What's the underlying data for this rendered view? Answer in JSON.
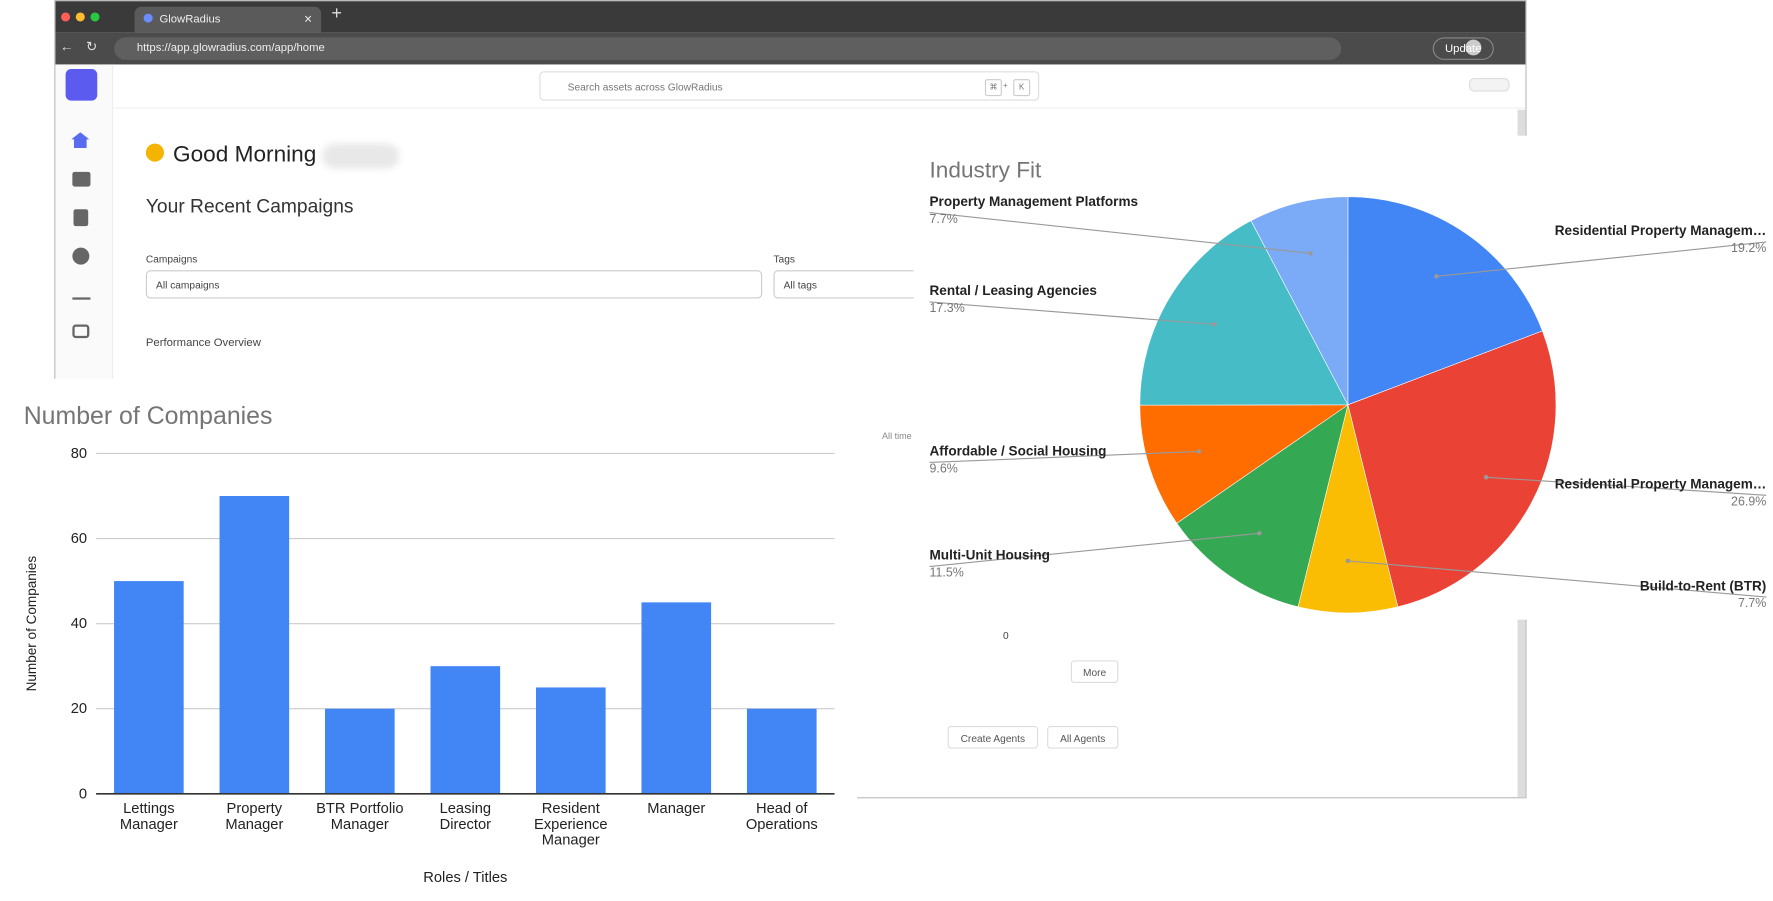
{
  "browser": {
    "tab_title": "GlowRadius",
    "url": "https://app.glowradius.com/app/home",
    "update_button": "Update"
  },
  "app": {
    "search_placeholder": "Search assets across GlowRadius",
    "shortcut": [
      "⌘",
      "+",
      "K"
    ],
    "greeting": "Good Morning",
    "section_title": "Your Recent Campaigns",
    "filters": [
      {
        "label": "Campaigns",
        "value": "All campaigns"
      },
      {
        "label": "Tags",
        "value": "All tags"
      }
    ],
    "performance_title": "Performance Overview",
    "time_range": "All time",
    "count": "0",
    "buttons": [
      "More",
      "Create Agents",
      "All Agents"
    ]
  },
  "chart_data": [
    {
      "type": "bar",
      "title": "Number of Companies",
      "x_label": "Roles / Titles",
      "y_label": "Number of Companies",
      "categories": [
        "Lettings Manager",
        "Property Manager",
        "BTR Portfolio Manager",
        "Leasing Director",
        "Resident Experience Manager",
        "Manager",
        "Head of Operations"
      ],
      "values": [
        50,
        70,
        20,
        30,
        25,
        45,
        20
      ],
      "color": "#4285f4",
      "ylim": [
        0,
        80
      ],
      "yticks": [
        0,
        20,
        40,
        60,
        80
      ],
      "grid": true
    },
    {
      "type": "pie",
      "title": "Industry Fit",
      "categories": [
        "Residential Property Managem…",
        "Residential Property Managem…",
        "Build-to-Rent (BTR)",
        "Multi-Unit Housing",
        "Affordable / Social Housing",
        "Rental / Leasing Agencies",
        "Property Management Platforms"
      ],
      "values": [
        19.2,
        26.9,
        7.7,
        11.5,
        9.6,
        17.3,
        7.7
      ],
      "value_labels": [
        "19.2%",
        "26.9%",
        "7.7%",
        "11.5%",
        "9.6%",
        "17.3%",
        "7.7%"
      ],
      "colors": [
        "#4285f4",
        "#ea4335",
        "#fbbc04",
        "#34a853",
        "#ff6d01",
        "#46bdc6",
        "#7baaf7"
      ]
    }
  ]
}
